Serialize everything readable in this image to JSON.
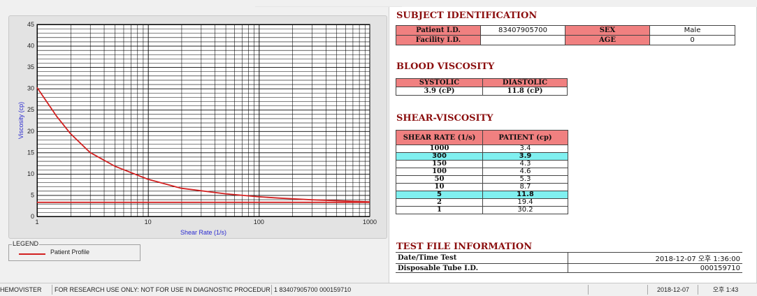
{
  "chart_data": {
    "type": "line",
    "xscale": "log",
    "xlim": [
      1,
      1000
    ],
    "ylim": [
      0,
      45
    ],
    "xlabel": "Shear Rate (1/s)",
    "ylabel": "Viscosity (cp)",
    "xticks": [
      "1",
      "10",
      "100",
      "1000"
    ],
    "yticks": [
      "0",
      "5",
      "10",
      "15",
      "20",
      "25",
      "30",
      "35",
      "40",
      "45"
    ],
    "grid": true,
    "legend_position": "bottom-left",
    "series": [
      {
        "name": "Patient Profile",
        "color": "#d22020",
        "x": [
          1,
          1.5,
          2,
          3,
          5,
          10,
          20,
          50,
          100,
          150,
          300,
          1000
        ],
        "y": [
          30.2,
          23.5,
          19.4,
          15.0,
          11.8,
          8.7,
          6.6,
          5.3,
          4.6,
          4.3,
          3.9,
          3.4
        ]
      },
      {
        "color": "#d22020",
        "x": [
          1,
          1000
        ],
        "y": [
          3.3,
          3.3
        ]
      }
    ]
  },
  "legend": {
    "title": "LEGEND",
    "item": "Patient Profile"
  },
  "subject": {
    "title": "SUBJECT IDENTIFICATION",
    "patient_id_label": "Patient I.D.",
    "patient_id": "83407905700",
    "sex_label": "SEX",
    "sex": "Male",
    "facility_label": "Facility I.D.",
    "facility": "",
    "age_label": "AGE",
    "age": "0"
  },
  "blood": {
    "title": "BLOOD VISCOSITY",
    "systolic_label": "SYSTOLIC",
    "diastolic_label": "DIASTOLIC",
    "systolic": "3.9 (cP)",
    "diastolic": "11.8 (cP)"
  },
  "shear": {
    "title": "SHEAR-VISCOSITY",
    "col1": "SHEAR RATE (1/s)",
    "col2": "PATIENT (cp)",
    "rows": [
      {
        "rate": "1000",
        "val": "3.4"
      },
      {
        "rate": "300",
        "val": "3.9"
      },
      {
        "rate": "150",
        "val": "4.3"
      },
      {
        "rate": "100",
        "val": "4.6"
      },
      {
        "rate": "50",
        "val": "5.3"
      },
      {
        "rate": "10",
        "val": "8.7"
      },
      {
        "rate": "5",
        "val": "11.8"
      },
      {
        "rate": "2",
        "val": "19.4"
      },
      {
        "rate": "1",
        "val": "30.2"
      }
    ],
    "highlight_color": "#80f0f0"
  },
  "testfile": {
    "title": "TEST FILE INFORMATION",
    "datetime_label": "Date/Time Test",
    "datetime": "2018-12-07  오후 1:36:00",
    "tube_label": "Disposable Tube I.D.",
    "tube": "000159710"
  },
  "status": {
    "app": "HEMOVISTER",
    "notice": "FOR RESEARCH USE ONLY: NOT FOR USE IN DIAGNOSTIC PROCEDURES",
    "record": "1  83407905700  000159710",
    "empty": "",
    "date": "2018-12-07",
    "time": "오후 1:43"
  },
  "colors": {
    "accent_red": "#f08080",
    "title_color": "#8b0e0e",
    "line": "#d22020"
  }
}
